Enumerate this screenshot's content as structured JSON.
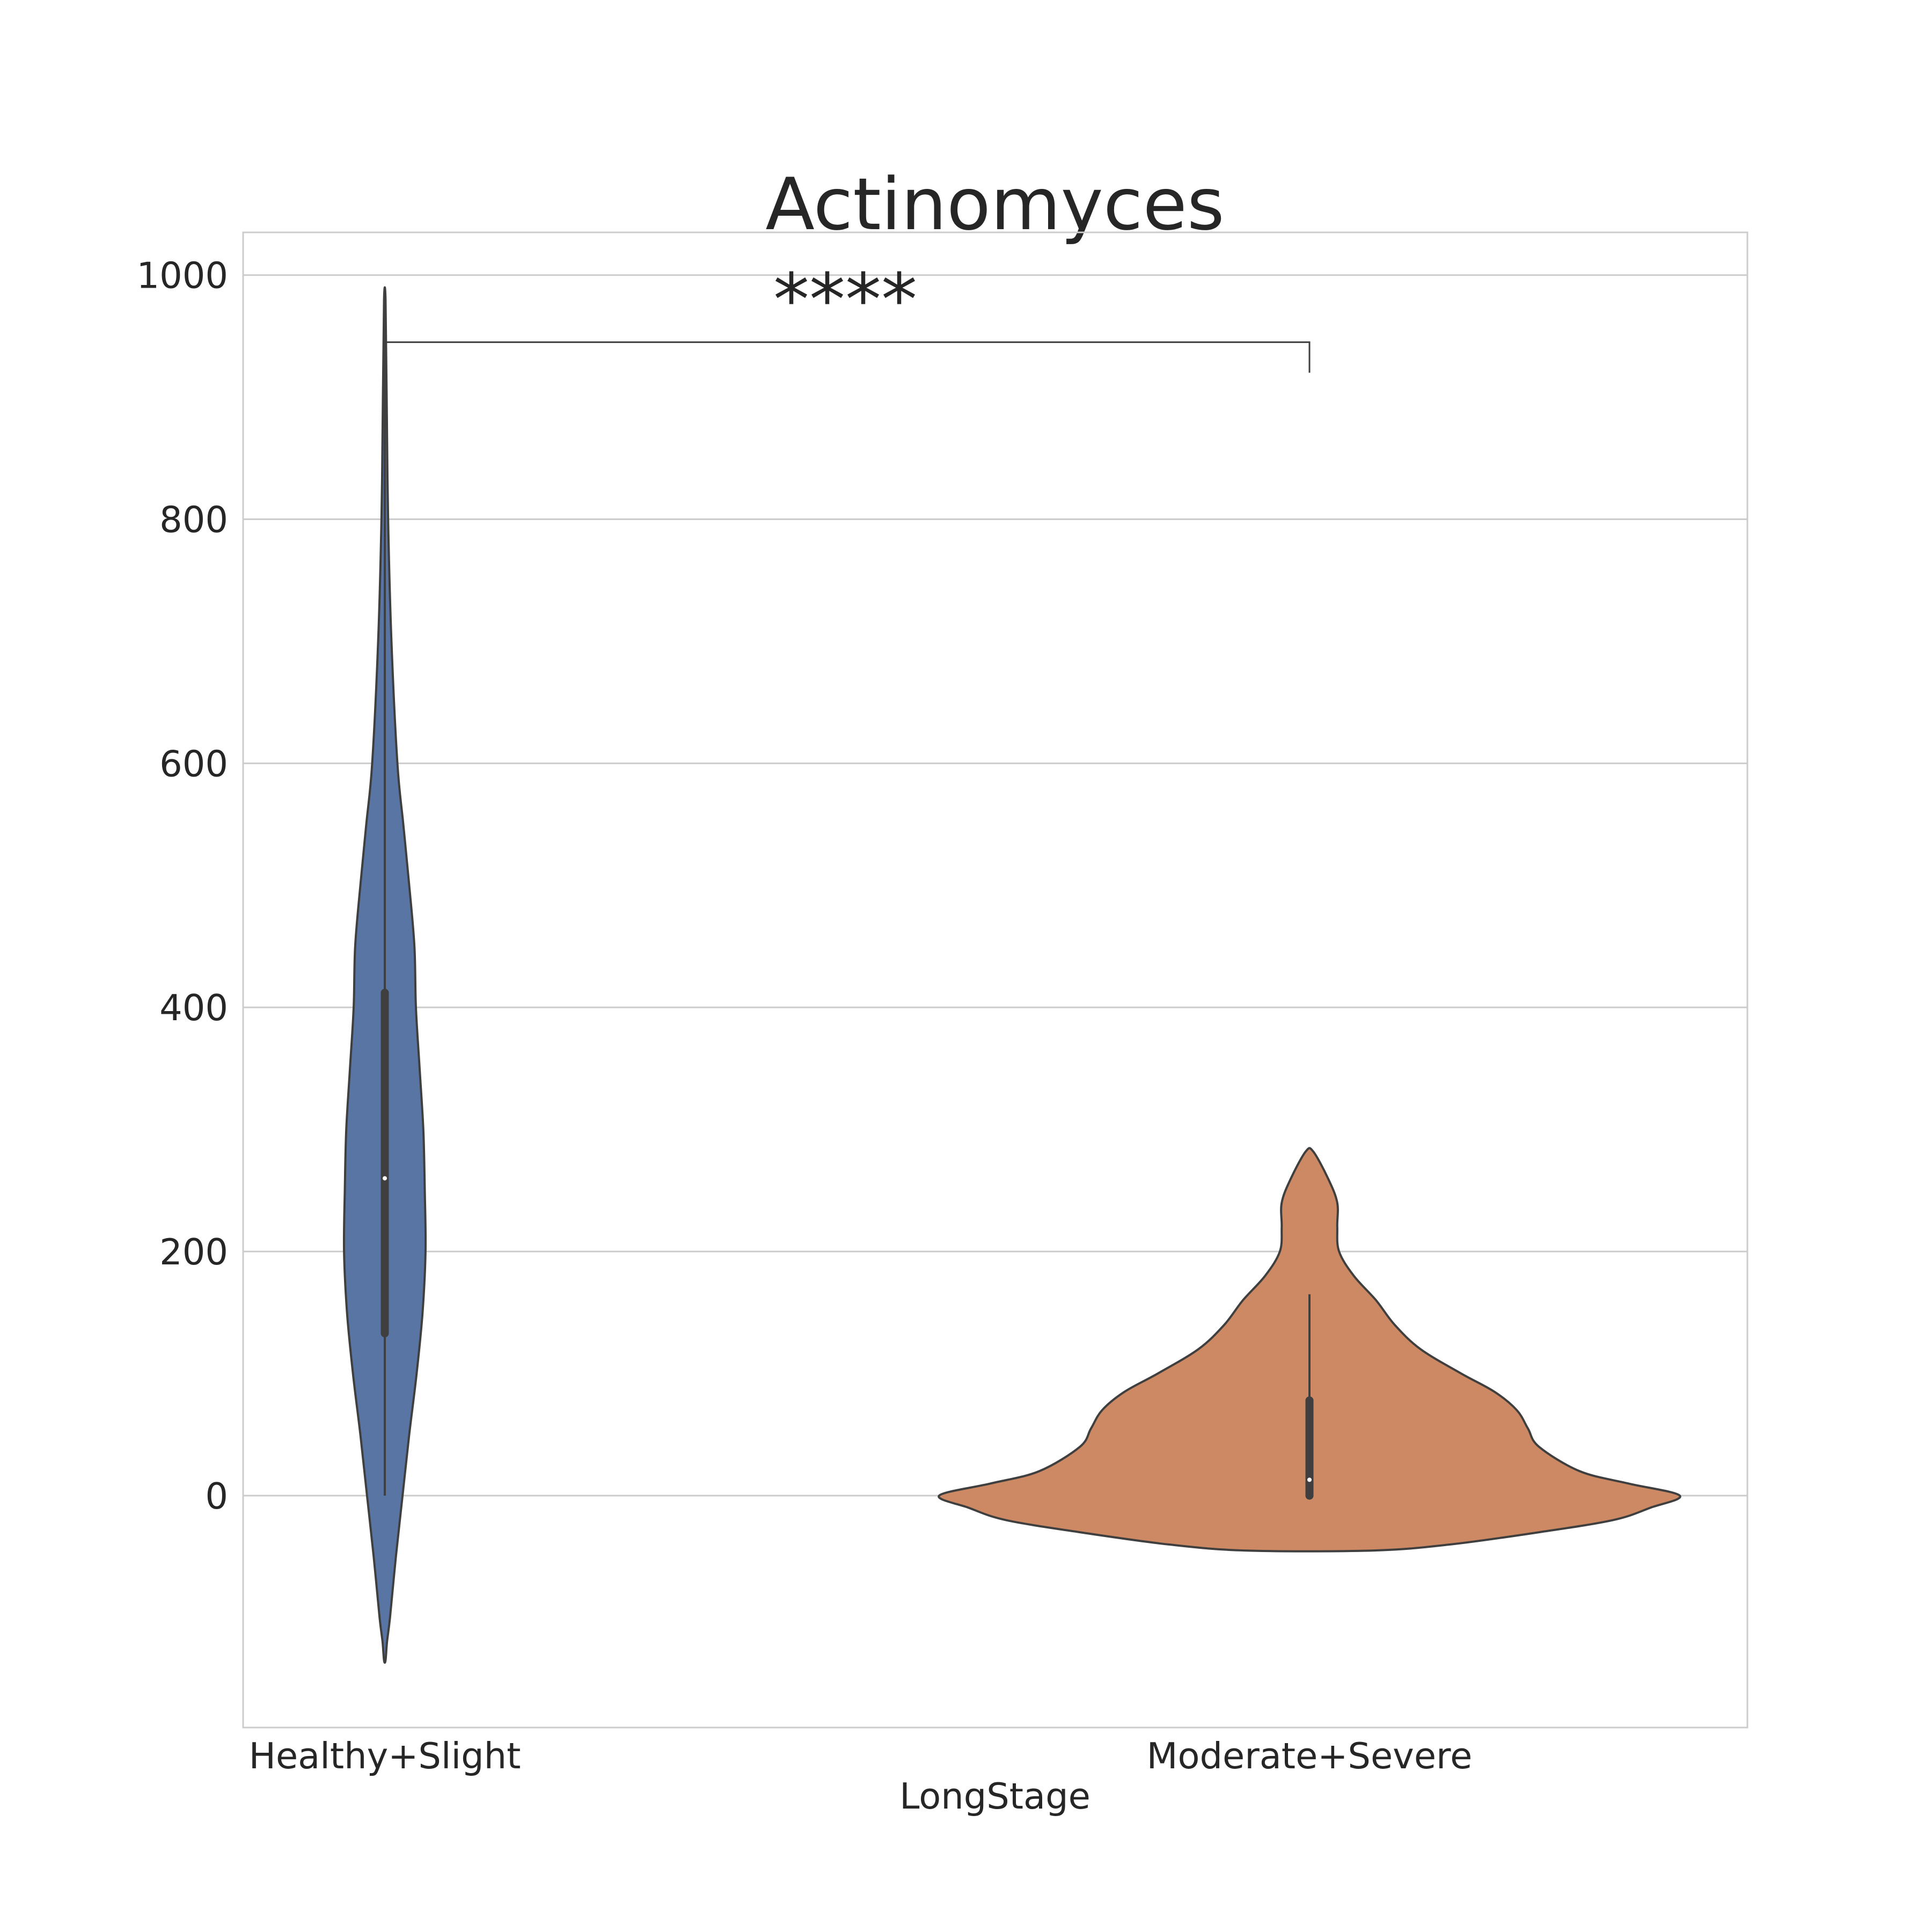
{
  "chart_data": {
    "type": "violin",
    "title": "Actinomyces",
    "xlabel": "LongStage",
    "ylabel": "",
    "ylim": [
      -190,
      1035
    ],
    "yticks": [
      0,
      200,
      400,
      600,
      800,
      1000
    ],
    "grid": true,
    "categories": [
      "Healthy+Slight",
      "Moderate+Severe"
    ],
    "series": [
      {
        "color": "#5975a4",
        "box": {
          "whisker_low": 0,
          "q1": 133,
          "median": 260,
          "q3": 412,
          "whisker_high": 785,
          "max": 980
        },
        "profile": [
          [
            -135,
            0.01
          ],
          [
            -120,
            0.03
          ],
          [
            -100,
            0.07
          ],
          [
            -50,
            0.15
          ],
          [
            0,
            0.24
          ],
          [
            50,
            0.33
          ],
          [
            100,
            0.43
          ],
          [
            150,
            0.51
          ],
          [
            200,
            0.55
          ],
          [
            250,
            0.54
          ],
          [
            300,
            0.52
          ],
          [
            350,
            0.47
          ],
          [
            400,
            0.42
          ],
          [
            450,
            0.4
          ],
          [
            500,
            0.33
          ],
          [
            550,
            0.25
          ],
          [
            600,
            0.17
          ],
          [
            700,
            0.09
          ],
          [
            800,
            0.045
          ],
          [
            900,
            0.025
          ],
          [
            980,
            0.01
          ]
        ]
      },
      {
        "color": "#cc8963",
        "box": {
          "whisker_low": 0,
          "q1": 0,
          "median": 13,
          "q3": 78,
          "whisker_high": 165,
          "max": 282
        },
        "profile": [
          [
            -45,
            0.17
          ],
          [
            -40,
            0.38
          ],
          [
            -30,
            0.62
          ],
          [
            -20,
            0.82
          ],
          [
            -10,
            0.92
          ],
          [
            0,
            1.0
          ],
          [
            10,
            0.86
          ],
          [
            20,
            0.73
          ],
          [
            40,
            0.62
          ],
          [
            55,
            0.59
          ],
          [
            70,
            0.56
          ],
          [
            85,
            0.5
          ],
          [
            100,
            0.41
          ],
          [
            120,
            0.3
          ],
          [
            140,
            0.23
          ],
          [
            160,
            0.18
          ],
          [
            180,
            0.12
          ],
          [
            200,
            0.08
          ],
          [
            220,
            0.075
          ],
          [
            240,
            0.075
          ],
          [
            260,
            0.05
          ],
          [
            282,
            0.01
          ]
        ]
      }
    ],
    "annotation": {
      "text": "****",
      "bracket_top": 945,
      "left_foot": 945,
      "right_foot": 920
    }
  },
  "colors": {
    "grid": "#cccccc",
    "frame": "#cccccc",
    "line": "#3f3f3f",
    "text": "#262626"
  }
}
